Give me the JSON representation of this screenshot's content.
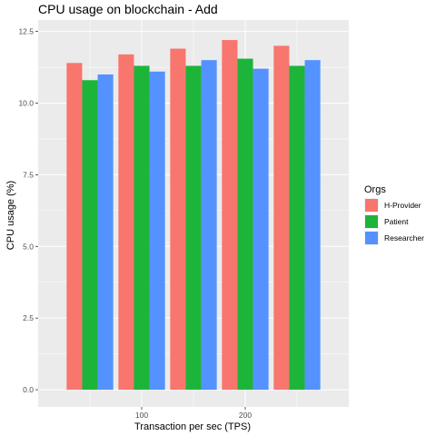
{
  "chart_data": {
    "type": "bar",
    "title": "CPU usage on blockchain - Add",
    "xlabel": "Transaction per sec (TPS)",
    "ylabel": "CPU usage (%)",
    "x_ticks": [
      {
        "value": 100,
        "label": "100"
      },
      {
        "value": 200,
        "label": "200"
      }
    ],
    "xlim": [
      0,
      300
    ],
    "categories": [
      50,
      100,
      150,
      200,
      250
    ],
    "ylim": [
      -0.6,
      12.9
    ],
    "y_ticks": [
      {
        "value": 0,
        "label": "0.0"
      },
      {
        "value": 2.5,
        "label": "2.5"
      },
      {
        "value": 5,
        "label": "5.0"
      },
      {
        "value": 7.5,
        "label": "7.5"
      },
      {
        "value": 10,
        "label": "10.0"
      },
      {
        "value": 12.5,
        "label": "12.5"
      }
    ],
    "grid": true,
    "background": "#EBEBEB",
    "legend": {
      "title": "Orgs",
      "position": "right"
    },
    "series": [
      {
        "name": "H-Provider",
        "color": "#F8766D",
        "values": [
          11.4,
          11.7,
          11.9,
          12.2,
          12.0
        ]
      },
      {
        "name": "Patient",
        "color": "#1DB43A",
        "values": [
          10.8,
          11.3,
          11.3,
          11.55,
          11.3
        ]
      },
      {
        "name": "Researcher",
        "color": "#5492FF",
        "values": [
          11.0,
          11.1,
          11.5,
          11.2,
          11.5
        ]
      }
    ]
  }
}
